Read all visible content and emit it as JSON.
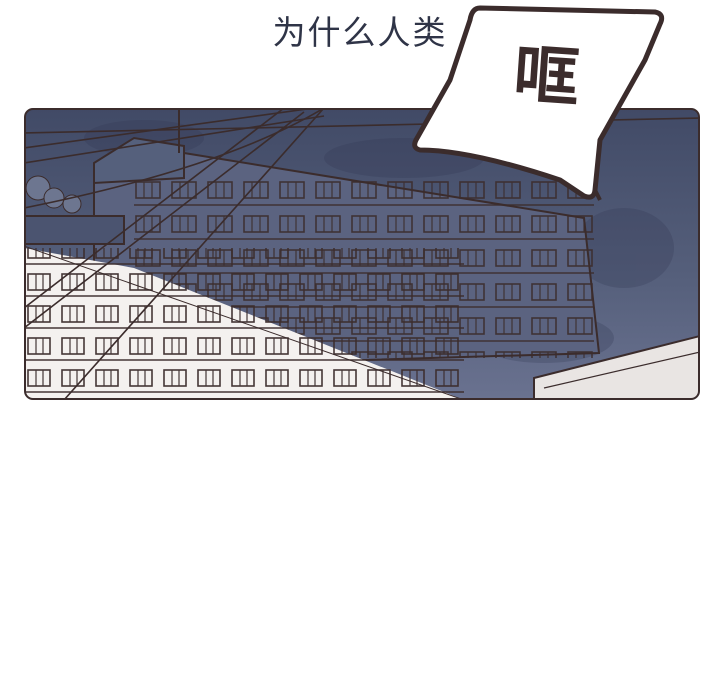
{
  "caption": {
    "text": "为什么人类"
  },
  "sound_effect": {
    "text": "哐"
  },
  "panel": {
    "scene": "apartment-building-night"
  },
  "colors": {
    "sky": "#4a5470",
    "line": "#3b2c2c",
    "caption": "#2f3447"
  }
}
